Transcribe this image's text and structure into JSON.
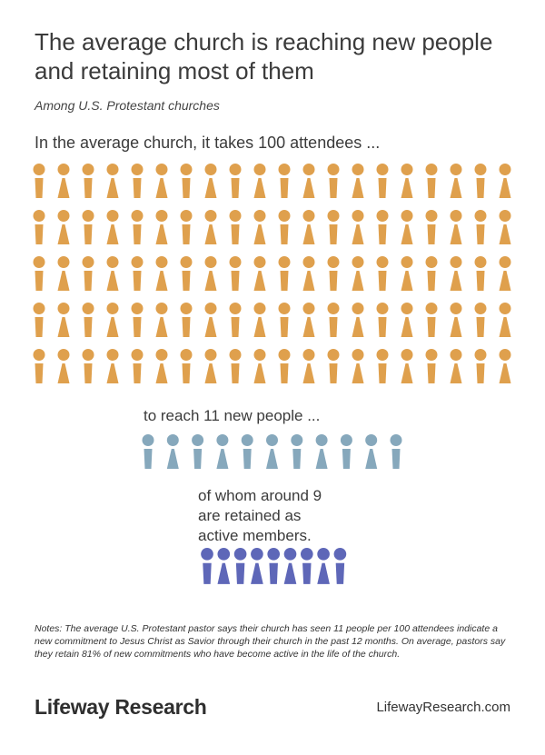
{
  "title": "The average church is reaching new people and retaining most of them",
  "subtitle": "Among U.S. Protestant churches",
  "chart_data": {
    "type": "pictogram",
    "groups": [
      {
        "label": "In the average church, it takes 100 attendees ...",
        "value": 100,
        "color": "#DFA04D"
      },
      {
        "label": "to reach 11 new people ...",
        "value": 11,
        "color": "#86A8BC"
      },
      {
        "label": "of whom around 9 are retained as active members.",
        "value": 9,
        "color": "#5E67B8"
      }
    ]
  },
  "labels": {
    "lead": "In the average church, it takes 100 attendees ...",
    "reach": "to reach 11 new people ...",
    "retain_line1": "of whom around 9",
    "retain_line2": "are retained as",
    "retain_line3": "active members."
  },
  "notes": "Notes: The average U.S. Protestant pastor says their church has seen 11 people per 100 attendees indicate a new commitment to Jesus Christ as Savior through their church in the past 12 months. On average, pastors say they retain 81% of new commitments who have become active in the life of the church.",
  "footer": {
    "logo": "Lifeway Research",
    "site": "LifewayResearch.com"
  }
}
